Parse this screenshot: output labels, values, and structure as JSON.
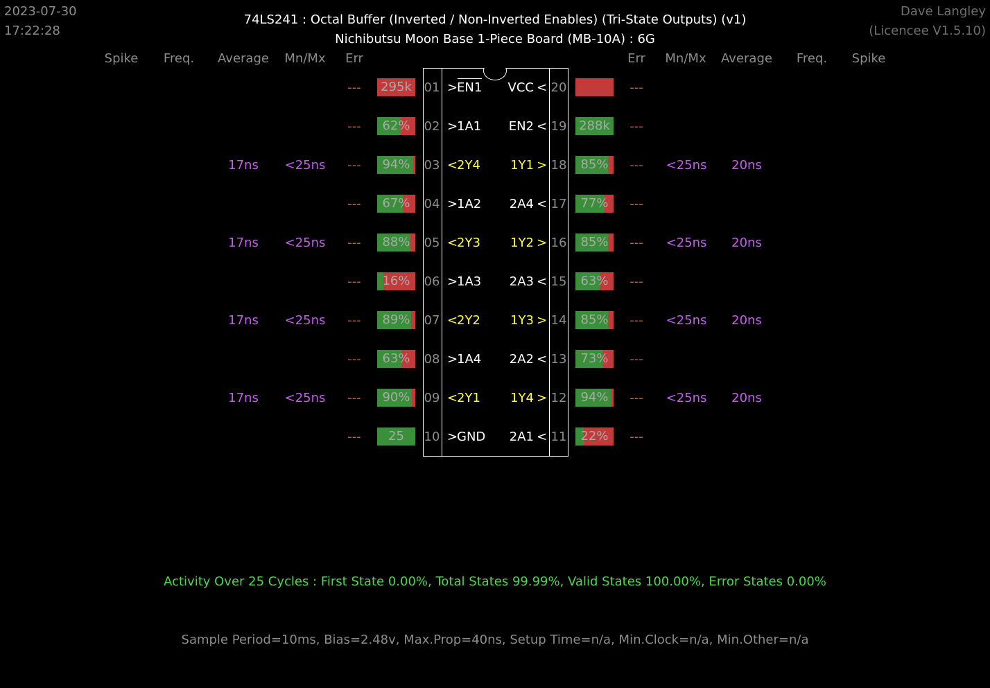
{
  "header": {
    "date": "2023-07-30",
    "time": "17:22:28",
    "title": "74LS241 : Octal Buffer (Inverted / Non-Inverted Enables) (Tri-State Outputs) (v1)",
    "subtitle": "Nichibutsu Moon Base 1-Piece Board (MB-10A) : 6G",
    "user": "Dave Langley",
    "licence": "(Licencee V1.5.10)"
  },
  "columns": {
    "left": {
      "spike": "Spike",
      "freq": "Freq.",
      "average": "Average",
      "mnmx": "Mn/Mx",
      "err": "Err"
    },
    "right": {
      "err": "Err",
      "mnmx": "Mn/Mx",
      "average": "Average",
      "freq": "Freq.",
      "spike": "Spike"
    }
  },
  "colors": {
    "pass": "#3a8f3a",
    "fail": "#c23a3a",
    "output_pin": "#ffff33",
    "timing": "#c45cf0",
    "error": "#d05a3a",
    "summary": "#4bd84b"
  },
  "left_pins": [
    {
      "num": "01",
      "dir": ">",
      "name": "EN1",
      "overline": true,
      "output": false,
      "bar_text": "295k",
      "bar_fill": 0,
      "err": "---",
      "average": "",
      "mnmx": ""
    },
    {
      "num": "02",
      "dir": ">",
      "name": "1A1",
      "output": false,
      "bar_text": "62%",
      "bar_fill": 0.62,
      "err": "---",
      "average": "",
      "mnmx": ""
    },
    {
      "num": "03",
      "dir": "<",
      "name": "2Y4",
      "output": true,
      "bar_text": "94%",
      "bar_fill": 0.94,
      "err": "---",
      "average": "17ns",
      "mnmx": "<25ns"
    },
    {
      "num": "04",
      "dir": ">",
      "name": "1A2",
      "output": false,
      "bar_text": "67%",
      "bar_fill": 0.67,
      "err": "---",
      "average": "",
      "mnmx": ""
    },
    {
      "num": "05",
      "dir": "<",
      "name": "2Y3",
      "output": true,
      "bar_text": "88%",
      "bar_fill": 0.88,
      "err": "---",
      "average": "17ns",
      "mnmx": "<25ns"
    },
    {
      "num": "06",
      "dir": ">",
      "name": "1A3",
      "output": false,
      "bar_text": "16%",
      "bar_fill": 0.16,
      "err": "---",
      "average": "",
      "mnmx": ""
    },
    {
      "num": "07",
      "dir": "<",
      "name": "2Y2",
      "output": true,
      "bar_text": "89%",
      "bar_fill": 0.89,
      "err": "---",
      "average": "17ns",
      "mnmx": "<25ns"
    },
    {
      "num": "08",
      "dir": ">",
      "name": "1A4",
      "output": false,
      "bar_text": "63%",
      "bar_fill": 0.63,
      "err": "---",
      "average": "",
      "mnmx": ""
    },
    {
      "num": "09",
      "dir": "<",
      "name": "2Y1",
      "output": true,
      "bar_text": "90%",
      "bar_fill": 0.9,
      "err": "---",
      "average": "17ns",
      "mnmx": "<25ns"
    },
    {
      "num": "10",
      "dir": ">",
      "name": "GND",
      "output": false,
      "bar_text": "25",
      "bar_fill": 1,
      "err": "---",
      "average": "",
      "mnmx": ""
    }
  ],
  "right_pins": [
    {
      "num": "20",
      "dir": "<",
      "name": "VCC",
      "output": false,
      "bar_text": "",
      "bar_fill": 0,
      "err": "---",
      "mnmx": "",
      "average": ""
    },
    {
      "num": "19",
      "dir": "<",
      "name": "EN2",
      "output": false,
      "bar_text": "288k",
      "bar_fill": 1,
      "err": "---",
      "mnmx": "",
      "average": ""
    },
    {
      "num": "18",
      "dir": ">",
      "name": "1Y1",
      "output": true,
      "bar_text": "85%",
      "bar_fill": 0.85,
      "err": "---",
      "mnmx": "<25ns",
      "average": "20ns"
    },
    {
      "num": "17",
      "dir": "<",
      "name": "2A4",
      "output": false,
      "bar_text": "77%",
      "bar_fill": 0.77,
      "err": "---",
      "mnmx": "",
      "average": ""
    },
    {
      "num": "16",
      "dir": ">",
      "name": "1Y2",
      "output": true,
      "bar_text": "85%",
      "bar_fill": 0.85,
      "err": "---",
      "mnmx": "<25ns",
      "average": "20ns"
    },
    {
      "num": "15",
      "dir": "<",
      "name": "2A3",
      "output": false,
      "bar_text": "63%",
      "bar_fill": 0.63,
      "err": "---",
      "mnmx": "",
      "average": ""
    },
    {
      "num": "14",
      "dir": ">",
      "name": "1Y3",
      "output": true,
      "bar_text": "85%",
      "bar_fill": 0.85,
      "err": "---",
      "mnmx": "<25ns",
      "average": "20ns"
    },
    {
      "num": "13",
      "dir": "<",
      "name": "2A2",
      "output": false,
      "bar_text": "73%",
      "bar_fill": 0.73,
      "err": "---",
      "mnmx": "",
      "average": ""
    },
    {
      "num": "12",
      "dir": ">",
      "name": "1Y4",
      "output": true,
      "bar_text": "94%",
      "bar_fill": 0.94,
      "err": "---",
      "mnmx": "<25ns",
      "average": "20ns"
    },
    {
      "num": "11",
      "dir": "<",
      "name": "2A1",
      "output": false,
      "bar_text": "22%",
      "bar_fill": 0.22,
      "err": "---",
      "mnmx": "",
      "average": ""
    }
  ],
  "footer": {
    "activity": "Activity Over 25 Cycles : First State 0.00%, Total States 99.99%, Valid States 100.00%, Error States 0.00%",
    "sample": "Sample Period=10ms, Bias=2.48v, Max.Prop=40ns, Setup Time=n/a, Min.Clock=n/a, Min.Other=n/a"
  }
}
